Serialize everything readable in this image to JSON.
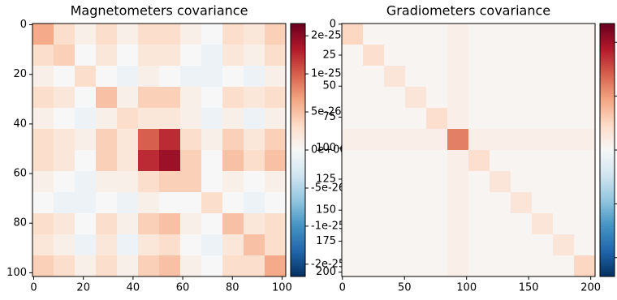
{
  "chart_data": [
    {
      "type": "heatmap",
      "title": "Magnetometers covariance",
      "xbins": [
        -0.5,
        8,
        16.5,
        25,
        33.5,
        42,
        50.5,
        59,
        67.5,
        76,
        84.5,
        93,
        101.5
      ],
      "ybins": [
        -0.5,
        8,
        16.5,
        25,
        33.5,
        42,
        50.5,
        59,
        67.5,
        76,
        84.5,
        93,
        101.5
      ],
      "values": [
        [
          6e-26,
          3e-26,
          1e-26,
          3e-26,
          1e-26,
          3e-26,
          3e-26,
          1e-26,
          0,
          3e-26,
          2e-26,
          4e-26
        ],
        [
          3e-26,
          4e-26,
          0,
          2e-26,
          0,
          2e-26,
          2e-26,
          0,
          -1e-26,
          2e-26,
          1e-26,
          3e-26
        ],
        [
          1e-26,
          0,
          3e-26,
          0,
          -1e-26,
          1e-26,
          0,
          -1e-26,
          -1e-26,
          0,
          -1e-26,
          1e-26
        ],
        [
          3e-26,
          2e-26,
          0,
          5e-26,
          1e-26,
          4e-26,
          4e-26,
          1e-26,
          0,
          3e-26,
          2e-26,
          3e-26
        ],
        [
          1e-26,
          0,
          -1e-26,
          1e-26,
          3e-26,
          2e-26,
          2e-26,
          1e-26,
          -1e-26,
          1e-26,
          -1e-26,
          1e-26
        ],
        [
          3e-26,
          2e-26,
          1e-26,
          4e-26,
          2e-26,
          1e-25,
          1.4e-25,
          3e-26,
          1e-26,
          4e-26,
          2e-26,
          4e-26
        ],
        [
          3e-26,
          2e-26,
          0,
          4e-26,
          2e-26,
          1.4e-25,
          1.8e-25,
          4e-26,
          0,
          5e-26,
          3e-26,
          5e-26
        ],
        [
          1e-26,
          0,
          -1e-26,
          1e-26,
          1e-26,
          3e-26,
          4e-26,
          4e-26,
          0,
          1e-26,
          0,
          1e-26
        ],
        [
          0,
          -1e-26,
          -1e-26,
          0,
          -1e-26,
          1e-26,
          0,
          0,
          3e-26,
          0,
          -1e-26,
          0
        ],
        [
          3e-26,
          2e-26,
          0,
          3e-26,
          1e-26,
          4e-26,
          5e-26,
          1e-26,
          0,
          5e-26,
          2e-26,
          3e-26
        ],
        [
          2e-26,
          1e-26,
          -1e-26,
          2e-26,
          -1e-26,
          2e-26,
          3e-26,
          0,
          -1e-26,
          2e-26,
          5e-26,
          3e-26
        ],
        [
          4e-26,
          3e-26,
          1e-26,
          3e-26,
          1e-26,
          4e-26,
          5e-26,
          1e-26,
          0,
          3e-26,
          3e-26,
          6e-26
        ]
      ],
      "xlim": [
        -0.5,
        101.5
      ],
      "ylim": [
        -0.5,
        101.5
      ],
      "y_inverted": true,
      "xticks": [
        0,
        20,
        40,
        60,
        80,
        100
      ],
      "yticks": [
        0,
        20,
        40,
        60,
        80,
        100
      ],
      "colorbar": {
        "lim": [
          -2.5e-25,
          2.5e-25
        ],
        "scale": "symlog",
        "linthresh": 5e-26,
        "base": 2,
        "ticks": [
          2e-25,
          1e-25,
          5e-26,
          {
            "value": 0,
            "label": "0e+00"
          },
          -5e-26,
          -1e-25,
          -2e-25
        ]
      },
      "colormap": [
        "#053061",
        "#2166ac",
        "#4393c3",
        "#92c5de",
        "#d1e5f0",
        "#f7f7f7",
        "#fddbc7",
        "#f4a582",
        "#d6604d",
        "#b2182b",
        "#67001f"
      ]
    },
    {
      "type": "heatmap",
      "title": "Gradiometers covariance",
      "xbins": [
        -0.5,
        16.5,
        33.5,
        50.5,
        67.5,
        84.5,
        101.5,
        118.5,
        135.5,
        152.5,
        169.5,
        186.5,
        203.5
      ],
      "ybins": [
        -0.5,
        16.5,
        33.5,
        50.5,
        67.5,
        84.5,
        101.5,
        118.5,
        135.5,
        152.5,
        169.5,
        186.5,
        203.5
      ],
      "values": [
        [
          5e-24,
          5e-25,
          5e-25,
          5e-25,
          5e-25,
          1.5e-24,
          5e-25,
          5e-25,
          5e-25,
          5e-25,
          5e-25,
          5e-25
        ],
        [
          5e-25,
          4e-24,
          5e-25,
          5e-25,
          5e-25,
          1.5e-24,
          5e-25,
          5e-25,
          5e-25,
          5e-25,
          5e-25,
          5e-25
        ],
        [
          5e-25,
          5e-25,
          3e-24,
          5e-25,
          5e-25,
          1.5e-24,
          5e-25,
          5e-25,
          5e-25,
          5e-25,
          5e-25,
          5e-25
        ],
        [
          5e-25,
          5e-25,
          5e-25,
          3e-24,
          5e-25,
          1.5e-24,
          5e-25,
          5e-25,
          5e-25,
          5e-25,
          5e-25,
          5e-25
        ],
        [
          5e-25,
          5e-25,
          5e-25,
          5e-25,
          4e-24,
          1.5e-24,
          5e-25,
          5e-25,
          5e-25,
          5e-25,
          5e-25,
          5e-25
        ],
        [
          1.5e-24,
          1.5e-24,
          1.5e-24,
          1.5e-24,
          1.5e-24,
          1.2e-23,
          1.5e-24,
          1.5e-24,
          1.5e-24,
          1.5e-24,
          1.5e-24,
          1.5e-24
        ],
        [
          5e-25,
          5e-25,
          5e-25,
          5e-25,
          5e-25,
          1.5e-24,
          4e-24,
          5e-25,
          5e-25,
          5e-25,
          5e-25,
          5e-25
        ],
        [
          5e-25,
          5e-25,
          5e-25,
          5e-25,
          5e-25,
          1.5e-24,
          5e-25,
          3e-24,
          5e-25,
          5e-25,
          5e-25,
          5e-25
        ],
        [
          5e-25,
          5e-25,
          5e-25,
          5e-25,
          5e-25,
          1.5e-24,
          5e-25,
          5e-25,
          3e-24,
          5e-25,
          5e-25,
          5e-25
        ],
        [
          5e-25,
          5e-25,
          5e-25,
          5e-25,
          5e-25,
          1.5e-24,
          5e-25,
          5e-25,
          5e-25,
          3e-24,
          5e-25,
          5e-25
        ],
        [
          5e-25,
          5e-25,
          5e-25,
          5e-25,
          5e-25,
          1.5e-24,
          5e-25,
          5e-25,
          5e-25,
          5e-25,
          3e-24,
          5e-25
        ],
        [
          5e-25,
          5e-25,
          5e-25,
          5e-25,
          5e-25,
          1.5e-24,
          5e-25,
          5e-25,
          5e-25,
          5e-25,
          5e-25,
          5e-24
        ]
      ],
      "xlim": [
        -0.5,
        203.5
      ],
      "ylim": [
        -0.5,
        203.5
      ],
      "y_inverted": true,
      "xticks": [
        0,
        50,
        100,
        150,
        200
      ],
      "yticks": [
        0,
        25,
        50,
        75,
        100,
        125,
        150,
        175,
        200
      ],
      "colorbar": {
        "lim": [
          -2.35e-23,
          2.35e-23
        ],
        "scale": "linear",
        "ticks": [
          {
            "value": 2e-23,
            "label": null
          },
          {
            "value": 1e-23,
            "label": null
          },
          {
            "value": 0,
            "label": null
          },
          {
            "value": -1e-23,
            "label": null
          },
          {
            "value": -2e-23,
            "label": null
          }
        ]
      },
      "colormap": [
        "#053061",
        "#2166ac",
        "#4393c3",
        "#92c5de",
        "#d1e5f0",
        "#f7f7f7",
        "#fddbc7",
        "#f4a582",
        "#d6604d",
        "#b2182b",
        "#67001f"
      ]
    }
  ]
}
